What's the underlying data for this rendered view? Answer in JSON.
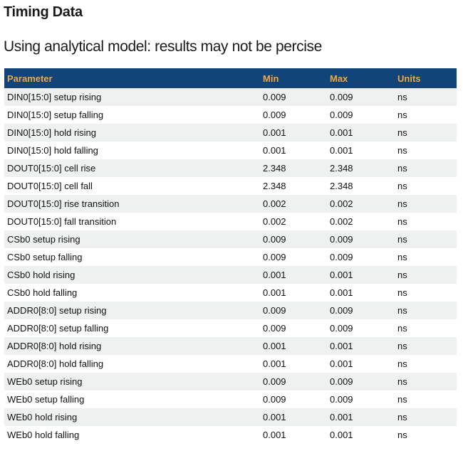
{
  "page": {
    "title": "Timing Data",
    "subtitle": "Using analytical model: results may not be percise"
  },
  "table": {
    "columns": [
      "Parameter",
      "Min",
      "Max",
      "Units"
    ],
    "rows": [
      {
        "parameter": "DIN0[15:0] setup rising",
        "min": "0.009",
        "max": "0.009",
        "units": "ns"
      },
      {
        "parameter": "DIN0[15:0] setup falling",
        "min": "0.009",
        "max": "0.009",
        "units": "ns"
      },
      {
        "parameter": "DIN0[15:0] hold rising",
        "min": "0.001",
        "max": "0.001",
        "units": "ns"
      },
      {
        "parameter": "DIN0[15:0] hold falling",
        "min": "0.001",
        "max": "0.001",
        "units": "ns"
      },
      {
        "parameter": "DOUT0[15:0] cell rise",
        "min": "2.348",
        "max": "2.348",
        "units": "ns"
      },
      {
        "parameter": "DOUT0[15:0] cell fall",
        "min": "2.348",
        "max": "2.348",
        "units": "ns"
      },
      {
        "parameter": "DOUT0[15:0] rise transition",
        "min": "0.002",
        "max": "0.002",
        "units": "ns"
      },
      {
        "parameter": "DOUT0[15:0] fall transition",
        "min": "0.002",
        "max": "0.002",
        "units": "ns"
      },
      {
        "parameter": "CSb0 setup rising",
        "min": "0.009",
        "max": "0.009",
        "units": "ns"
      },
      {
        "parameter": "CSb0 setup falling",
        "min": "0.009",
        "max": "0.009",
        "units": "ns"
      },
      {
        "parameter": "CSb0 hold rising",
        "min": "0.001",
        "max": "0.001",
        "units": "ns"
      },
      {
        "parameter": "CSb0 hold falling",
        "min": "0.001",
        "max": "0.001",
        "units": "ns"
      },
      {
        "parameter": "ADDR0[8:0] setup rising",
        "min": "0.009",
        "max": "0.009",
        "units": "ns"
      },
      {
        "parameter": "ADDR0[8:0] setup falling",
        "min": "0.009",
        "max": "0.009",
        "units": "ns"
      },
      {
        "parameter": "ADDR0[8:0] hold rising",
        "min": "0.001",
        "max": "0.001",
        "units": "ns"
      },
      {
        "parameter": "ADDR0[8:0] hold falling",
        "min": "0.001",
        "max": "0.001",
        "units": "ns"
      },
      {
        "parameter": "WEb0 setup rising",
        "min": "0.009",
        "max": "0.009",
        "units": "ns"
      },
      {
        "parameter": "WEb0 setup falling",
        "min": "0.009",
        "max": "0.009",
        "units": "ns"
      },
      {
        "parameter": "WEb0 hold rising",
        "min": "0.001",
        "max": "0.001",
        "units": "ns"
      },
      {
        "parameter": "WEb0 hold falling",
        "min": "0.001",
        "max": "0.001",
        "units": "ns"
      }
    ]
  },
  "colors": {
    "header_bg": "#114478",
    "header_text": "#F2A63E",
    "row_alt_bg": "#EFF1F1",
    "body_text": "#111111"
  }
}
